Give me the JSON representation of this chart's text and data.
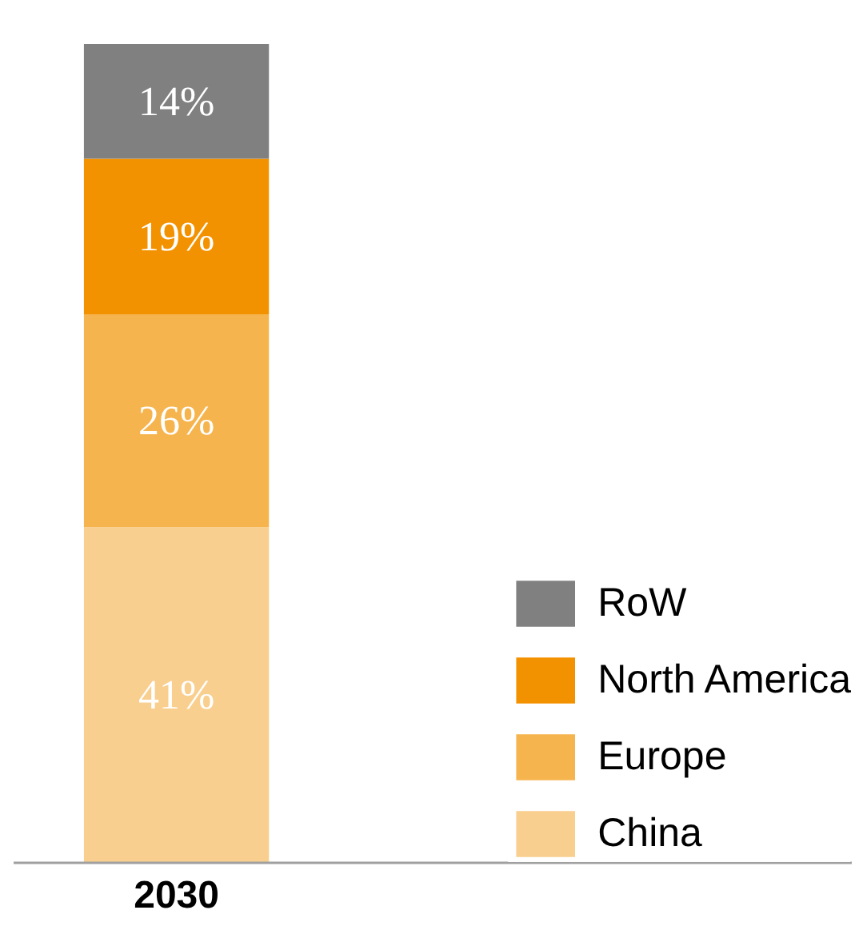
{
  "chart_data": {
    "type": "bar",
    "stacked": true,
    "categories": [
      "2030"
    ],
    "series": [
      {
        "name": "China",
        "color": "#f9cf8f",
        "values": [
          41
        ],
        "value_labels": [
          "41%"
        ]
      },
      {
        "name": "Europe",
        "color": "#f6b44e",
        "values": [
          26
        ],
        "value_labels": [
          "26%"
        ]
      },
      {
        "name": "North America",
        "color": "#f39200",
        "values": [
          19
        ],
        "value_labels": [
          "19%"
        ]
      },
      {
        "name": "RoW",
        "color": "#808080",
        "values": [
          14
        ],
        "value_labels": [
          "14%"
        ]
      }
    ],
    "legend": "right"
  }
}
